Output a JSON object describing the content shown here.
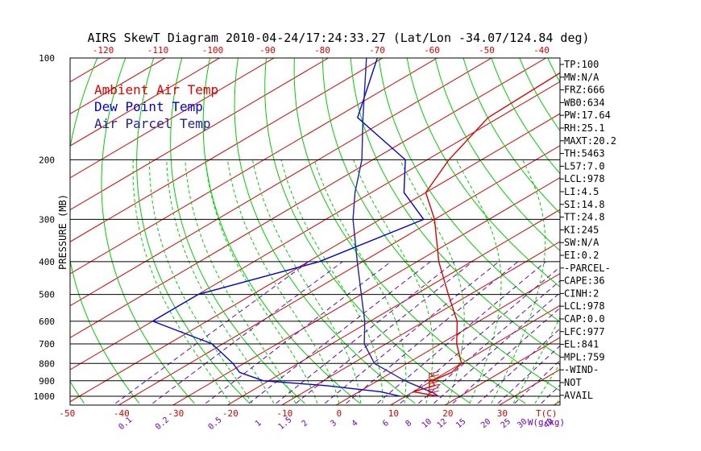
{
  "title": "AIRS SkewT Diagram 2010-04-24/17:24:33.27 (Lat/Lon -34.07/124.84 deg)",
  "legend": [
    {
      "label": "Ambient Air Temp",
      "color": "#e00000"
    },
    {
      "label": "Dew Point Temp",
      "color": "#0000e0"
    },
    {
      "label": "Air Parcel Temp",
      "color": "#2020a0"
    }
  ],
  "colors": {
    "dry_adiabat": "#00d000",
    "isotherm": "#e00000",
    "mixing_ratio": "#7000c0",
    "moist_adiabat": "#00d000",
    "axis": "#000000",
    "wind_barb": "#e00000"
  },
  "chart_data": {
    "type": "line",
    "ylabel": "PRESSURE (MB)",
    "xlabel": "T(C)",
    "mixing_ratio_label": "W(g/kg)",
    "y_scale": "log",
    "y_inverted": true,
    "ylim": [
      1000,
      100
    ],
    "pressure_ticks": [
      100,
      200,
      300,
      400,
      500,
      600,
      700,
      800,
      900,
      1000
    ],
    "bottom_temp_ticks": [
      -50,
      -40,
      -30,
      -20,
      -10,
      0,
      10,
      20,
      30
    ],
    "top_temp_ticks": [
      -120,
      -110,
      -100,
      -90,
      -80,
      -70,
      -60,
      -50,
      -40
    ],
    "mixing_ratio_ticks": [
      "0.1",
      "0.2",
      "0.5",
      "1",
      "1.5",
      "2",
      "3",
      "4",
      "6",
      "8",
      "10",
      "12",
      "15",
      "20",
      "25",
      "30",
      "40"
    ],
    "series": [
      {
        "name": "Ambient Air Temp",
        "points": [
          [
            1000,
            16
          ],
          [
            970,
            10
          ],
          [
            930,
            12
          ],
          [
            900,
            10
          ],
          [
            850,
            11
          ],
          [
            800,
            10
          ],
          [
            700,
            3
          ],
          [
            600,
            -4
          ],
          [
            500,
            -14
          ],
          [
            400,
            -26
          ],
          [
            300,
            -40
          ],
          [
            250,
            -50
          ],
          [
            200,
            -56
          ],
          [
            150,
            -62
          ],
          [
            100,
            -63
          ]
        ]
      },
      {
        "name": "Dew Point Temp",
        "points": [
          [
            1000,
            9
          ],
          [
            970,
            4
          ],
          [
            930,
            -8
          ],
          [
            900,
            -21
          ],
          [
            850,
            -28
          ],
          [
            800,
            -32
          ],
          [
            700,
            -42
          ],
          [
            600,
            -60
          ],
          [
            500,
            -60
          ],
          [
            400,
            -48
          ],
          [
            300,
            -42
          ],
          [
            250,
            -54
          ],
          [
            200,
            -64
          ],
          [
            150,
            -86
          ],
          [
            100,
            -101
          ]
        ]
      },
      {
        "name": "Air Parcel Temp",
        "points": [
          [
            1000,
            16
          ],
          [
            977,
            14
          ],
          [
            900,
            5
          ],
          [
            800,
            -6
          ],
          [
            700,
            -14
          ],
          [
            600,
            -21
          ],
          [
            500,
            -30
          ],
          [
            400,
            -41
          ],
          [
            300,
            -55
          ],
          [
            250,
            -63
          ],
          [
            200,
            -72
          ],
          [
            150,
            -85
          ],
          [
            100,
            -103
          ]
        ]
      }
    ],
    "indices": [
      "TP:100",
      "MW:N/A",
      "FRZ:666",
      "WB0:634",
      "PW:17.64",
      "RH:25.1",
      "MAXT:20.2",
      "TH:5463",
      "L57:7.0",
      "LCL:978",
      "LI:4.5",
      "SI:14.8",
      "TT:24.8",
      "KI:245",
      "SW:N/A",
      "EI:0.2",
      "-PARCEL-",
      "CAPE:36",
      "CINH:2",
      "LCL:978",
      "CAP:0.0",
      "LFC:977",
      "EL:841",
      "MPL:759",
      "-WIND-",
      "NOT",
      "AVAIL"
    ]
  }
}
